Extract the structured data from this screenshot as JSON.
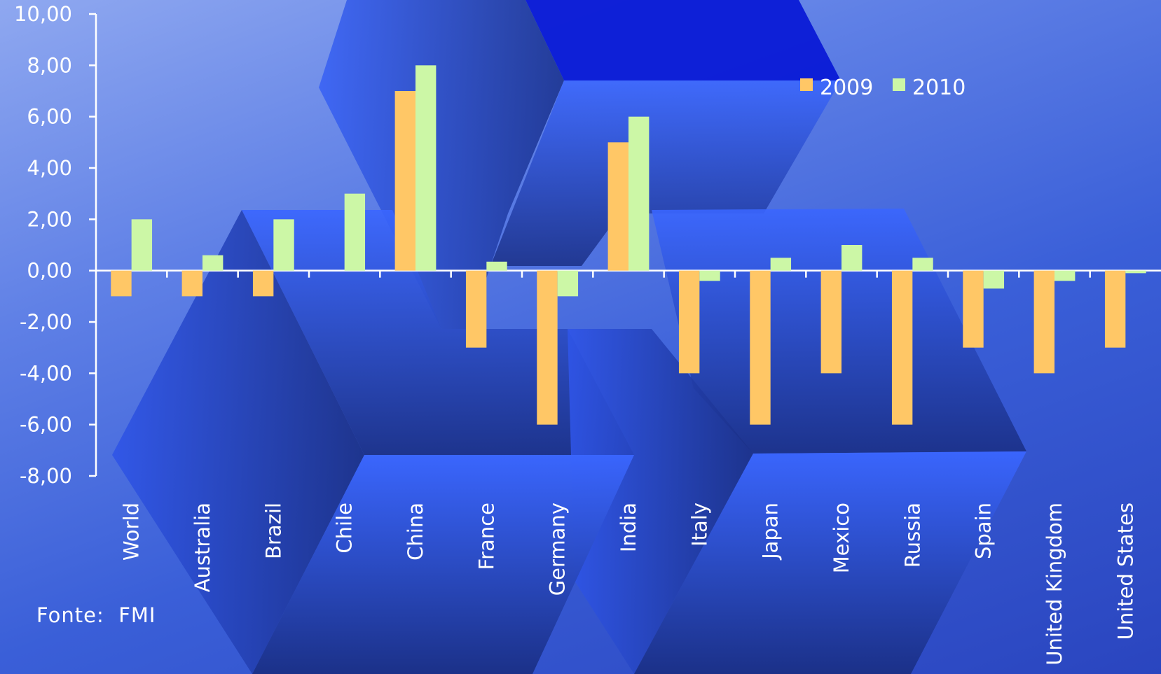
{
  "source_note": "Fonte:  FMI",
  "colors": {
    "series_2009": "#ffc766",
    "series_2010": "#ccf7a6",
    "axis": "#ffffff",
    "text": "#ffffff"
  },
  "chart_data": {
    "type": "bar",
    "categories": [
      "World",
      "Australia",
      "Brazil",
      "Chile",
      "China",
      "France",
      "Germany",
      "India",
      "Italy",
      "Japan",
      "Mexico",
      "Russia",
      "Spain",
      "United Kingdom",
      "United States"
    ],
    "series": [
      {
        "name": "2009",
        "values": [
          -1,
          -1,
          -1,
          0,
          7,
          -3,
          -6,
          5,
          -4,
          -6,
          -4,
          -6,
          -3,
          -4,
          -3
        ]
      },
      {
        "name": "2010",
        "values": [
          2,
          0.6,
          2,
          3,
          8,
          0.35,
          -1,
          6,
          -0.4,
          0.5,
          1,
          0.5,
          -0.7,
          -0.4,
          -0.1
        ]
      }
    ],
    "ylim": [
      -8,
      10
    ],
    "yticks": [
      "10,00",
      "8,00",
      "6,00",
      "4,00",
      "2,00",
      "0,00",
      "-2,00",
      "-4,00",
      "-6,00",
      "-8,00"
    ],
    "legend_position": "top-right",
    "grid": false
  }
}
